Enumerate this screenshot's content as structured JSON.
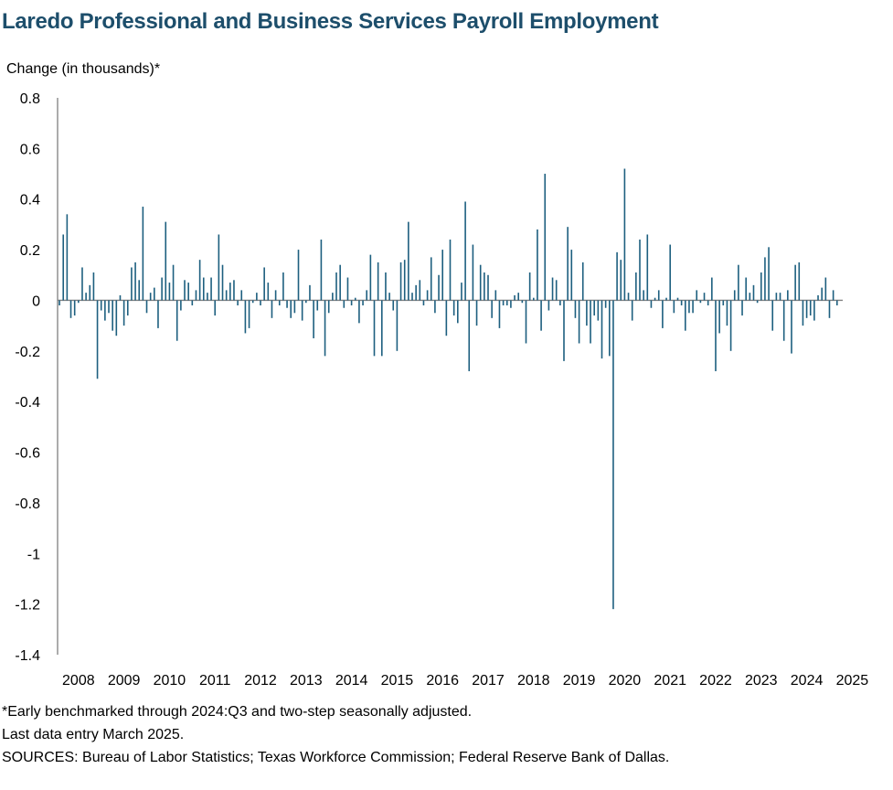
{
  "chart_data": {
    "type": "bar",
    "title": "Laredo Professional and Business Services Payroll Employment",
    "ylabel": "Change (in thousands)*",
    "ylim": [
      -1.4,
      0.8
    ],
    "yticks": [
      "0.8",
      "0.6",
      "0.4",
      "0.2",
      "0",
      "-0.2",
      "-0.4",
      "-0.6",
      "-0.8",
      "-1",
      "-1.2",
      "-1.4"
    ],
    "xtick_labels": [
      "2008",
      "2009",
      "2010",
      "2011",
      "2012",
      "2013",
      "2014",
      "2015",
      "2016",
      "2017",
      "2018",
      "2019",
      "2020",
      "2021",
      "2022",
      "2023",
      "2024",
      "2025"
    ],
    "frequency": "monthly",
    "start": "2008-01",
    "end": "2025-03",
    "grid": false,
    "legend": "none",
    "bar_color": "#1d5f7f",
    "series": [
      {
        "values": [
          -0.02,
          0.26,
          0.34,
          -0.07,
          -0.06,
          -0.01,
          0.13,
          0.03,
          0.06,
          0.11,
          -0.31,
          -0.04,
          -0.08,
          -0.05,
          -0.12,
          -0.14,
          0.02,
          -0.1,
          -0.06,
          0.13,
          0.15,
          0.08,
          0.37,
          -0.05,
          0.03,
          0.05,
          -0.11,
          0.09,
          0.31,
          0.07,
          0.14,
          -0.16,
          -0.04,
          0.08,
          0.07,
          -0.02,
          0.04,
          0.16,
          0.09,
          0.03,
          0.09,
          -0.06,
          0.26,
          0.14,
          0.04,
          0.07,
          0.08,
          -0.02,
          0.04,
          -0.13,
          -0.11,
          -0.01,
          0.03,
          -0.02,
          0.13,
          0.07,
          -0.07,
          0.04,
          -0.02,
          0.11,
          -0.03,
          -0.07,
          -0.05,
          0.2,
          -0.08,
          -0.01,
          0.06,
          -0.15,
          -0.04,
          0.24,
          -0.22,
          -0.05,
          0.03,
          0.11,
          0.14,
          -0.03,
          0.09,
          -0.02,
          0.01,
          -0.09,
          -0.02,
          0.04,
          0.18,
          -0.22,
          0.15,
          -0.22,
          0.11,
          0.03,
          -0.04,
          -0.2,
          0.15,
          0.16,
          0.31,
          0.03,
          0.06,
          0.08,
          -0.02,
          0.04,
          0.17,
          -0.05,
          0.1,
          0.2,
          -0.14,
          0.24,
          -0.06,
          -0.09,
          0.07,
          0.39,
          -0.28,
          0.22,
          -0.1,
          0.14,
          0.11,
          0.1,
          -0.07,
          0.04,
          -0.11,
          -0.02,
          -0.02,
          -0.03,
          0.02,
          0.03,
          -0.01,
          -0.17,
          0.11,
          0.01,
          0.28,
          -0.12,
          0.5,
          -0.04,
          0.09,
          0.08,
          -0.02,
          -0.24,
          0.29,
          0.2,
          -0.07,
          -0.17,
          0.15,
          -0.1,
          -0.17,
          -0.06,
          -0.08,
          -0.23,
          -0.03,
          -0.22,
          -1.22,
          0.19,
          0.16,
          0.52,
          0.03,
          -0.08,
          0.11,
          0.24,
          0.04,
          0.26,
          -0.03,
          0.01,
          0.04,
          -0.11,
          0.01,
          0.22,
          -0.05,
          0.01,
          -0.02,
          -0.12,
          -0.05,
          -0.05,
          0.04,
          -0.01,
          0.03,
          -0.02,
          0.09,
          -0.28,
          -0.13,
          -0.02,
          -0.1,
          -0.2,
          0.04,
          0.14,
          -0.06,
          0.09,
          0.03,
          0.06,
          -0.01,
          0.11,
          0.17,
          0.21,
          -0.12,
          0.03,
          0.03,
          -0.16,
          0.04,
          -0.21,
          0.14,
          0.15,
          -0.1,
          -0.07,
          -0.06,
          -0.08,
          0.02,
          0.05,
          0.09,
          -0.07,
          0.04,
          -0.02
        ]
      }
    ]
  },
  "notes": {
    "footnote": "*Early benchmarked through 2024:Q3 and two-step seasonally adjusted.",
    "last_entry": "Last data entry March 2025.",
    "sources": "SOURCES:  Bureau of Labor Statistics; Texas Workforce Commission;  Federal Reserve Bank of Dallas."
  }
}
